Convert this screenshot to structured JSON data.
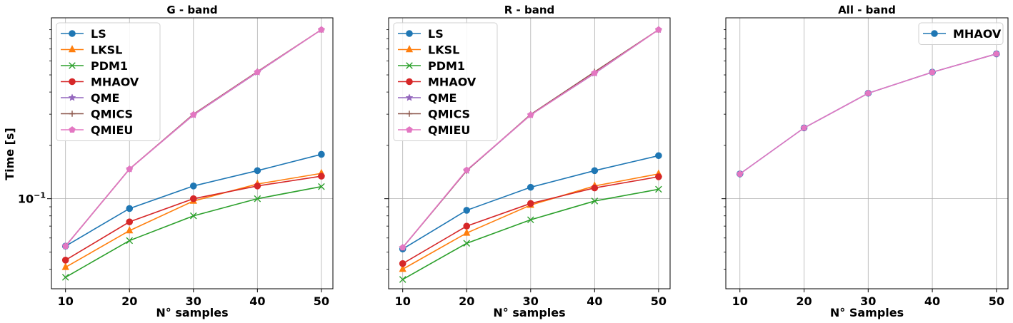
{
  "chart_data": [
    {
      "type": "line",
      "title": "G - band",
      "xlabel": "N° samples",
      "ylabel": "Time [s]",
      "yscale": "log",
      "grid": true,
      "legend_placement": "top-left",
      "x": [
        10,
        20,
        30,
        40,
        50
      ],
      "xticks": [
        "10",
        "20",
        "30",
        "40",
        "50"
      ],
      "ytick_label": "10^{-1}",
      "series": [
        {
          "name": "LS",
          "color": "#1f77b4",
          "marker": "circle",
          "values": [
            0.054,
            0.088,
            0.118,
            0.144,
            0.178
          ]
        },
        {
          "name": "LKSL",
          "color": "#ff7f0e",
          "marker": "triangle",
          "values": [
            0.041,
            0.066,
            0.097,
            0.121,
            0.139
          ]
        },
        {
          "name": "PDM1",
          "color": "#2ca02c",
          "marker": "x",
          "values": [
            0.036,
            0.058,
            0.08,
            0.1,
            0.117
          ]
        },
        {
          "name": "MHAOV",
          "color": "#d62728",
          "marker": "circle",
          "values": [
            0.045,
            0.074,
            0.1,
            0.118,
            0.134
          ]
        },
        {
          "name": "QME",
          "color": "#9467bd",
          "marker": "star",
          "values": [
            0.054,
            0.147,
            0.297,
            0.517,
            0.9
          ]
        },
        {
          "name": "QMICS",
          "color": "#8c564b",
          "marker": "plus",
          "values": [
            0.054,
            0.147,
            0.3,
            0.522,
            0.9
          ]
        },
        {
          "name": "QMIEU",
          "color": "#e377c2",
          "marker": "pentagon",
          "values": [
            0.054,
            0.147,
            0.298,
            0.519,
            0.9
          ]
        }
      ]
    },
    {
      "type": "line",
      "title": "R - band",
      "xlabel": "N° samples",
      "yscale": "log",
      "grid": true,
      "legend_placement": "top-left",
      "x": [
        10,
        20,
        30,
        40,
        50
      ],
      "xticks": [
        "10",
        "20",
        "30",
        "40",
        "50"
      ],
      "series": [
        {
          "name": "LS",
          "color": "#1f77b4",
          "marker": "circle",
          "values": [
            0.052,
            0.086,
            0.116,
            0.144,
            0.175
          ]
        },
        {
          "name": "LKSL",
          "color": "#ff7f0e",
          "marker": "triangle",
          "values": [
            0.04,
            0.064,
            0.092,
            0.118,
            0.138
          ]
        },
        {
          "name": "PDM1",
          "color": "#2ca02c",
          "marker": "x",
          "values": [
            0.035,
            0.056,
            0.076,
            0.097,
            0.113
          ]
        },
        {
          "name": "MHAOV",
          "color": "#d62728",
          "marker": "circle",
          "values": [
            0.043,
            0.07,
            0.094,
            0.115,
            0.133
          ]
        },
        {
          "name": "QME",
          "color": "#9467bd",
          "marker": "star",
          "values": [
            0.053,
            0.144,
            0.297,
            0.51,
            0.9
          ]
        },
        {
          "name": "QMICS",
          "color": "#8c564b",
          "marker": "plus",
          "values": [
            0.053,
            0.144,
            0.299,
            0.52,
            0.9
          ]
        },
        {
          "name": "QMIEU",
          "color": "#e377c2",
          "marker": "pentagon",
          "values": [
            0.053,
            0.145,
            0.297,
            0.512,
            0.9
          ]
        }
      ]
    },
    {
      "type": "line",
      "title": "All - band",
      "xlabel": "N° Samples",
      "yscale": "log",
      "grid": true,
      "legend_placement": "top-right",
      "x": [
        10,
        20,
        30,
        40,
        50
      ],
      "xticks": [
        "10",
        "20",
        "30",
        "40",
        "50"
      ],
      "series": [
        {
          "name": "MHAOV",
          "color": "#1f77b4",
          "marker": "circle",
          "values": [
            0.138,
            0.251,
            0.394,
            0.518,
            0.657
          ]
        },
        {
          "name": "",
          "color": "#e377c2",
          "marker": "pentagon",
          "values": [
            0.138,
            0.251,
            0.394,
            0.518,
            0.657
          ]
        }
      ]
    }
  ]
}
